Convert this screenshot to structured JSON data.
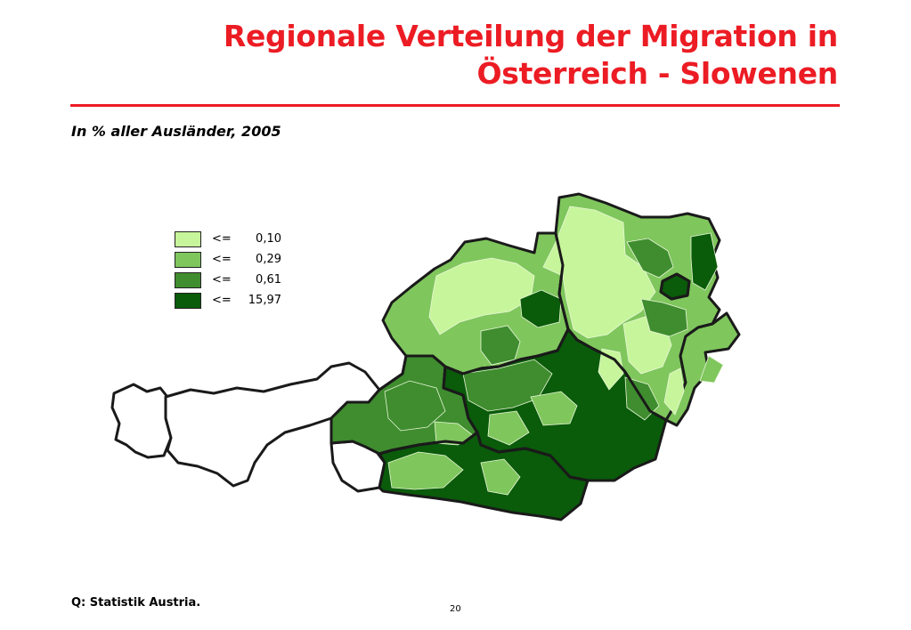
{
  "slide": {
    "title_line1": "Regionale Verteilung der Migration in",
    "title_line2": "Österreich - Slowenen",
    "subtitle": "In % aller Ausländer, 2005",
    "source": "Q: Statistik Austria.",
    "page_number": "20"
  },
  "colors": {
    "title": "#ec1c24",
    "class1": "#c7f59b",
    "class2": "#7fc65d",
    "class3": "#3f8d2f",
    "class4": "#0a5b0a",
    "no_data": "#ffffff"
  },
  "legend": [
    {
      "op": "<=",
      "value": "0,10",
      "color": "#c7f59b"
    },
    {
      "op": "<=",
      "value": "0,29",
      "color": "#7fc65d"
    },
    {
      "op": "<=",
      "value": "0,61",
      "color": "#3f8d2f"
    },
    {
      "op": "<=",
      "value": "15,97",
      "color": "#0a5b0a"
    }
  ]
}
